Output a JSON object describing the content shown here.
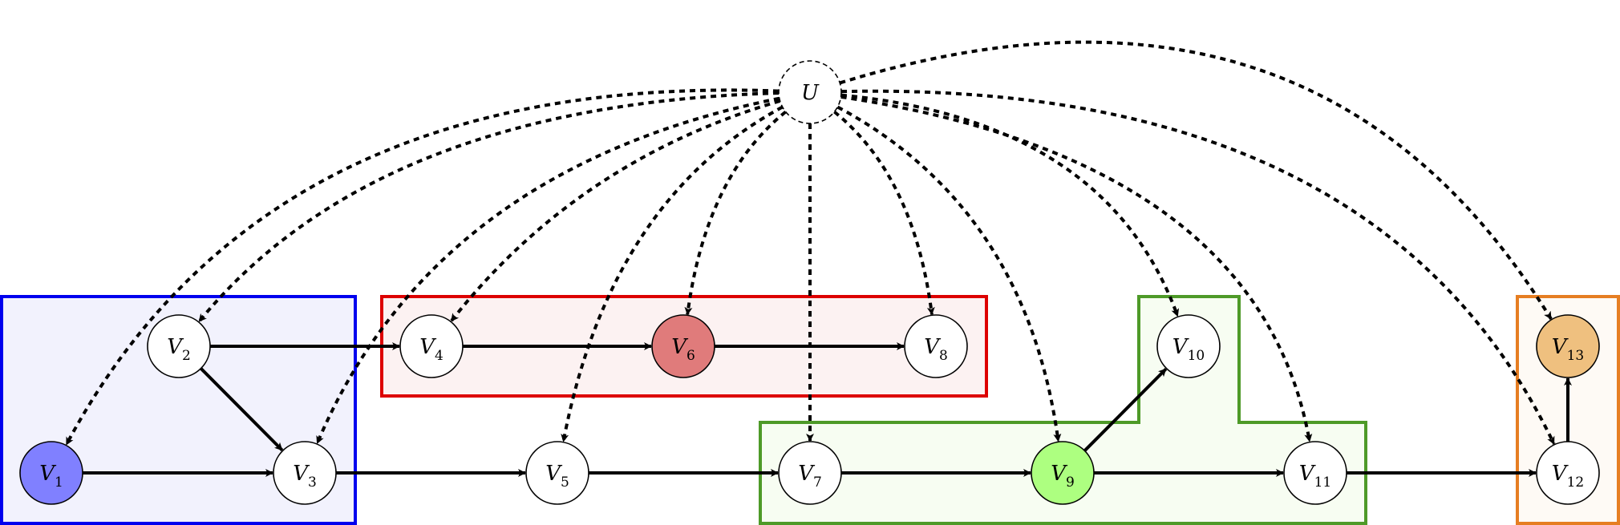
{
  "diagram": {
    "colors": {
      "blue": "#0000ee",
      "blue_fill": "#f2f2fd",
      "red": "#dd0000",
      "red_fill": "#fcf2f2",
      "green": "#4e9a28",
      "green_fill": "#f7fdf2",
      "orange": "#e67e22",
      "orange_fill": "#fefaf5",
      "v1_fill": "#8080ff",
      "v6_fill": "#e07b7b",
      "v9_fill": "#adff80",
      "v13_fill": "#efc07f",
      "edge": "#000000"
    },
    "groups": [
      {
        "id": "group-blue",
        "color": "blue"
      },
      {
        "id": "group-red",
        "color": "red"
      },
      {
        "id": "group-green",
        "color": "green"
      },
      {
        "id": "group-orange",
        "color": "orange"
      }
    ],
    "nodes": [
      {
        "id": "U",
        "label": "U",
        "sub": "",
        "style": "dashed"
      },
      {
        "id": "V1",
        "label": "V",
        "sub": "1",
        "fill": "v1_fill"
      },
      {
        "id": "V2",
        "label": "V",
        "sub": "2"
      },
      {
        "id": "V3",
        "label": "V",
        "sub": "3"
      },
      {
        "id": "V4",
        "label": "V",
        "sub": "4"
      },
      {
        "id": "V5",
        "label": "V",
        "sub": "5"
      },
      {
        "id": "V6",
        "label": "V",
        "sub": "6",
        "fill": "v6_fill"
      },
      {
        "id": "V7",
        "label": "V",
        "sub": "7"
      },
      {
        "id": "V8",
        "label": "V",
        "sub": "8"
      },
      {
        "id": "V9",
        "label": "V",
        "sub": "9",
        "fill": "v9_fill"
      },
      {
        "id": "V10",
        "label": "V",
        "sub": "10"
      },
      {
        "id": "V11",
        "label": "V",
        "sub": "11"
      },
      {
        "id": "V12",
        "label": "V",
        "sub": "12"
      },
      {
        "id": "V13",
        "label": "V",
        "sub": "13",
        "fill": "v13_fill"
      }
    ],
    "edges": [
      {
        "from": "V1",
        "to": "V3",
        "style": "solid"
      },
      {
        "from": "V2",
        "to": "V3",
        "style": "solid"
      },
      {
        "from": "V2",
        "to": "V4",
        "style": "solid"
      },
      {
        "from": "V4",
        "to": "V6",
        "style": "solid"
      },
      {
        "from": "V6",
        "to": "V8",
        "style": "solid"
      },
      {
        "from": "V3",
        "to": "V5",
        "style": "solid"
      },
      {
        "from": "V5",
        "to": "V7",
        "style": "solid"
      },
      {
        "from": "V7",
        "to": "V9",
        "style": "solid"
      },
      {
        "from": "V9",
        "to": "V10",
        "style": "solid"
      },
      {
        "from": "V9",
        "to": "V11",
        "style": "solid"
      },
      {
        "from": "V11",
        "to": "V12",
        "style": "solid"
      },
      {
        "from": "V12",
        "to": "V13",
        "style": "solid"
      },
      {
        "from": "U",
        "to": "V1",
        "style": "dashed"
      },
      {
        "from": "U",
        "to": "V2",
        "style": "dashed"
      },
      {
        "from": "U",
        "to": "V3",
        "style": "dashed"
      },
      {
        "from": "U",
        "to": "V4",
        "style": "dashed"
      },
      {
        "from": "U",
        "to": "V5",
        "style": "dashed"
      },
      {
        "from": "U",
        "to": "V6",
        "style": "dashed"
      },
      {
        "from": "U",
        "to": "V7",
        "style": "dashed"
      },
      {
        "from": "U",
        "to": "V8",
        "style": "dashed"
      },
      {
        "from": "U",
        "to": "V9",
        "style": "dashed"
      },
      {
        "from": "U",
        "to": "V10",
        "style": "dashed"
      },
      {
        "from": "U",
        "to": "V11",
        "style": "dashed"
      },
      {
        "from": "U",
        "to": "V12",
        "style": "dashed"
      },
      {
        "from": "U",
        "to": "V13",
        "style": "dashed"
      }
    ]
  }
}
